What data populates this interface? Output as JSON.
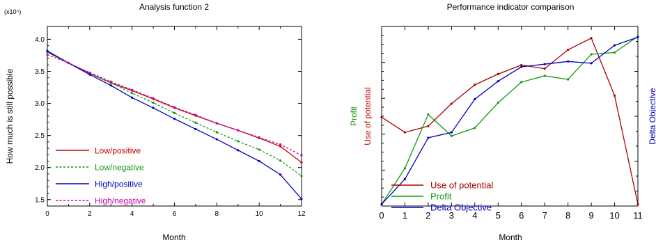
{
  "chart_data": [
    {
      "type": "line",
      "title": "Analysis function 2",
      "xlabel": "Month",
      "ylabel": "How much is still possible",
      "y_multiplier_label": "(x10⁵)",
      "xlim": [
        0,
        12
      ],
      "ylim": [
        1.4,
        4.2
      ],
      "x_ticks": [
        0,
        2,
        4,
        6,
        8,
        10,
        12
      ],
      "x_tick_labels": [
        "0",
        "2",
        "4",
        "6",
        "8",
        "10",
        "12"
      ],
      "y_ticks": [
        1.5,
        2.0,
        2.5,
        3.0,
        3.5,
        4.0
      ],
      "y_tick_labels": [
        "1.5",
        "2.0",
        "2.5",
        "3.0",
        "3.5",
        "4.0"
      ],
      "x": [
        0,
        1,
        2,
        3,
        4,
        5,
        6,
        7,
        8,
        9,
        10,
        11,
        12
      ],
      "legend_placement": "bottom-left",
      "grid": false,
      "series": [
        {
          "name": "Low/positive",
          "color": "#c00000",
          "dash": "solid",
          "values": [
            3.8,
            3.63,
            3.47,
            3.32,
            3.2,
            3.07,
            2.93,
            2.81,
            2.69,
            2.58,
            2.46,
            2.33,
            2.08
          ]
        },
        {
          "name": "Low/negative",
          "color": "#119911",
          "dash": "dotted",
          "values": [
            3.8,
            3.63,
            3.47,
            3.32,
            3.16,
            3.01,
            2.85,
            2.7,
            2.55,
            2.41,
            2.28,
            2.11,
            1.87
          ]
        },
        {
          "name": "High/positive",
          "color": "#0000bb",
          "dash": "solid",
          "values": [
            3.82,
            3.63,
            3.45,
            3.28,
            3.09,
            2.93,
            2.76,
            2.6,
            2.44,
            2.27,
            2.1,
            1.89,
            1.51
          ]
        },
        {
          "name": "High/negative",
          "color": "#cc00aa",
          "dash": "dotted",
          "values": [
            3.76,
            3.63,
            3.48,
            3.34,
            3.21,
            3.08,
            2.94,
            2.82,
            2.69,
            2.58,
            2.47,
            2.36,
            2.19
          ]
        }
      ]
    },
    {
      "type": "line",
      "title": "Performance indicator comparison",
      "xlabel": "Month",
      "x": [
        0,
        1,
        2,
        3,
        4,
        5,
        6,
        7,
        8,
        9,
        10,
        11
      ],
      "x_tick_labels": [
        "0",
        "1",
        "2",
        "3",
        "4",
        "5",
        "6",
        "7",
        "8",
        "9",
        "10",
        "11"
      ],
      "xlim": [
        0,
        11
      ],
      "y_scale": "normalized",
      "y_axes": [
        {
          "side": "left",
          "labels": [
            {
              "text": "Profit",
              "color": "#119911"
            },
            {
              "text": "Use of potential",
              "color": "#c00000"
            }
          ]
        },
        {
          "side": "right",
          "labels": [
            {
              "text": "Delta Objective",
              "color": "#0000bb"
            }
          ]
        }
      ],
      "legend_placement": "bottom-left",
      "grid": false,
      "series": [
        {
          "name": "Use of potential",
          "color": "#aa0000",
          "values": [
            0.495,
            0.41,
            0.445,
            0.57,
            0.675,
            0.735,
            0.785,
            0.765,
            0.87,
            0.935,
            0.615,
            0.01
          ]
        },
        {
          "name": "Profit",
          "color": "#119911",
          "values": [
            0.01,
            0.21,
            0.51,
            0.39,
            0.435,
            0.575,
            0.69,
            0.725,
            0.705,
            0.845,
            0.855,
            0.945
          ]
        },
        {
          "name": "Delta Objective",
          "color": "#0000bb",
          "values": [
            0.01,
            0.15,
            0.38,
            0.41,
            0.595,
            0.695,
            0.775,
            0.79,
            0.805,
            0.795,
            0.895,
            0.94
          ]
        }
      ]
    }
  ]
}
